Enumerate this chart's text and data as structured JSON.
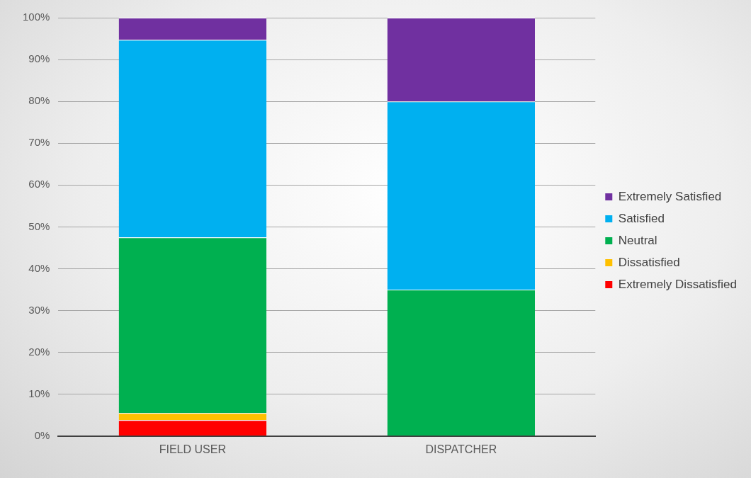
{
  "chart_data": {
    "type": "bar",
    "stacked": true,
    "categories": [
      "FIELD USER",
      "DISPATCHER"
    ],
    "series": [
      {
        "name": "Extremely Dissatisfied",
        "color": "#ff0000",
        "values": [
          3.8,
          0
        ]
      },
      {
        "name": "Dissatisfied",
        "color": "#ffc000",
        "values": [
          1.7,
          0
        ]
      },
      {
        "name": "Neutral",
        "color": "#00b050",
        "values": [
          42.0,
          35
        ]
      },
      {
        "name": "Satisfied",
        "color": "#00b0f0",
        "values": [
          47.2,
          45
        ]
      },
      {
        "name": "Extremely Satisfied",
        "color": "#7030a0",
        "values": [
          5.3,
          20
        ]
      }
    ],
    "ylim": [
      0,
      100
    ],
    "yticks": [
      {
        "value": 0,
        "label": "0%"
      },
      {
        "value": 10,
        "label": "10%"
      },
      {
        "value": 20,
        "label": "20%"
      },
      {
        "value": 30,
        "label": "30%"
      },
      {
        "value": 40,
        "label": "40%"
      },
      {
        "value": 50,
        "label": "50%"
      },
      {
        "value": 60,
        "label": "60%"
      },
      {
        "value": 70,
        "label": "70%"
      },
      {
        "value": 80,
        "label": "80%"
      },
      {
        "value": 90,
        "label": "90%"
      },
      {
        "value": 100,
        "label": "100%"
      }
    ],
    "grid": "y",
    "legend": "right"
  }
}
